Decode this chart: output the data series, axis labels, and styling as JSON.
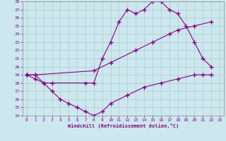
{
  "xlabel": "Windchill (Refroidissement éolien,°C)",
  "xlim": [
    -0.5,
    23.5
  ],
  "ylim": [
    14,
    28
  ],
  "xticks": [
    0,
    1,
    2,
    3,
    4,
    5,
    6,
    7,
    8,
    9,
    10,
    11,
    12,
    13,
    14,
    15,
    16,
    17,
    18,
    19,
    20,
    21,
    22,
    23
  ],
  "yticks": [
    14,
    15,
    16,
    17,
    18,
    19,
    20,
    21,
    22,
    23,
    24,
    25,
    26,
    27,
    28
  ],
  "bg_color": "#cce8ee",
  "line_color": "#880088",
  "grid_color": "#aacccc",
  "line1_x": [
    0,
    1,
    2,
    3,
    7,
    8,
    9,
    10,
    11,
    12,
    13,
    14,
    15,
    16,
    17,
    18,
    19,
    20,
    21,
    22
  ],
  "line1_y": [
    19,
    18.5,
    18,
    18,
    18,
    18,
    21,
    23,
    25.5,
    27,
    26.5,
    27,
    28,
    28,
    27,
    26.5,
    25,
    23,
    21,
    20
  ],
  "line2_x": [
    0,
    1,
    8,
    10,
    13,
    15,
    17,
    18,
    20,
    22
  ],
  "line2_y": [
    19,
    19,
    19.5,
    20.5,
    22,
    23,
    24,
    24.5,
    25,
    25.5
  ],
  "line3_x": [
    0,
    1,
    2,
    3,
    4,
    5,
    6,
    7,
    8,
    9,
    10,
    12,
    14,
    16,
    18,
    20,
    21,
    22
  ],
  "line3_y": [
    19,
    19,
    18,
    17,
    16,
    15.5,
    15,
    14.5,
    14,
    14.5,
    15.5,
    16.5,
    17.5,
    18,
    18.5,
    19,
    19,
    19
  ]
}
